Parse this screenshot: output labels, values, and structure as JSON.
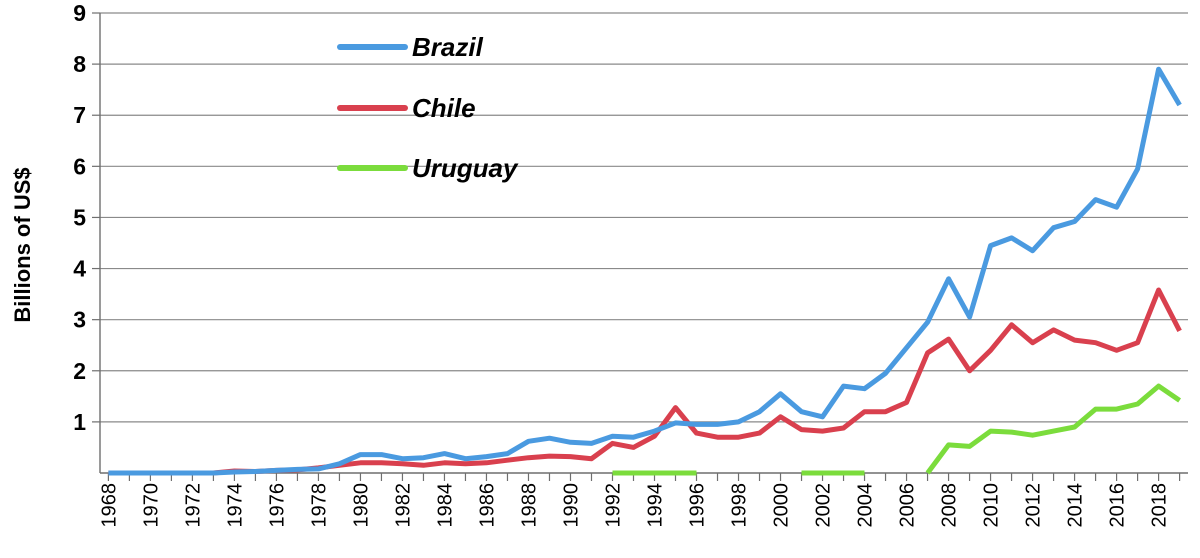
{
  "chart_data": {
    "type": "line",
    "ylabel": "Billions of US$",
    "xlabel": "",
    "ylim": [
      0,
      9
    ],
    "y_ticks": [
      "1",
      "2",
      "3",
      "4",
      "5",
      "6",
      "7",
      "8",
      "9"
    ],
    "x_tick_labels": [
      "1968",
      "1970",
      "1972",
      "1974",
      "1976",
      "1978",
      "1980",
      "1982",
      "1984",
      "1986",
      "1988",
      "1990",
      "1992",
      "1994",
      "1996",
      "1998",
      "2000",
      "2002",
      "2004",
      "2006",
      "2008",
      "2010",
      "2012",
      "2014",
      "2016",
      "2018"
    ],
    "grid": "horizontal",
    "legend_position": "top-left",
    "x": [
      1968,
      1969,
      1970,
      1971,
      1972,
      1973,
      1974,
      1975,
      1976,
      1977,
      1978,
      1979,
      1980,
      1981,
      1982,
      1983,
      1984,
      1985,
      1986,
      1987,
      1988,
      1989,
      1990,
      1991,
      1992,
      1993,
      1994,
      1995,
      1996,
      1997,
      1998,
      1999,
      2000,
      2001,
      2002,
      2003,
      2004,
      2005,
      2006,
      2007,
      2008,
      2009,
      2010,
      2011,
      2012,
      2013,
      2014,
      2015,
      2016,
      2017,
      2018,
      2019
    ],
    "series": [
      {
        "name": "Brazil",
        "color": "#4a9ae0",
        "values": [
          0,
          0,
          0,
          0,
          0,
          0,
          0.02,
          0.03,
          0.05,
          0.07,
          0.08,
          0.18,
          0.36,
          0.36,
          0.28,
          0.3,
          0.38,
          0.28,
          0.32,
          0.38,
          0.62,
          0.68,
          0.6,
          0.58,
          0.72,
          0.7,
          0.82,
          0.98,
          0.95,
          0.95,
          1.0,
          1.2,
          1.55,
          1.2,
          1.1,
          1.7,
          1.65,
          1.95,
          2.45,
          2.95,
          3.8,
          3.05,
          4.45,
          4.6,
          4.35,
          4.8,
          4.92,
          5.35,
          5.2,
          5.95,
          7.9,
          7.2
        ]
      },
      {
        "name": "Chile",
        "color": "#d9404e",
        "values": [
          0,
          0,
          0,
          0,
          0,
          0,
          0.04,
          0.03,
          0.05,
          0.06,
          0.1,
          0.15,
          0.2,
          0.2,
          0.18,
          0.15,
          0.2,
          0.18,
          0.2,
          0.25,
          0.3,
          0.33,
          0.32,
          0.28,
          0.58,
          0.5,
          0.72,
          1.28,
          0.78,
          0.7,
          0.7,
          0.78,
          1.1,
          0.85,
          0.82,
          0.88,
          1.2,
          1.2,
          1.38,
          2.35,
          2.62,
          2.0,
          2.4,
          2.9,
          2.55,
          2.8,
          2.6,
          2.55,
          2.4,
          2.55,
          3.58,
          2.78
        ]
      },
      {
        "name": "Uruguay",
        "color": "#7bdc3c",
        "values": [
          null,
          null,
          null,
          null,
          null,
          null,
          null,
          null,
          null,
          null,
          null,
          null,
          null,
          null,
          null,
          null,
          null,
          null,
          null,
          null,
          null,
          null,
          null,
          null,
          0,
          0,
          0,
          0,
          0,
          null,
          null,
          null,
          null,
          0,
          0,
          0,
          0,
          null,
          null,
          0,
          0.55,
          0.52,
          0.82,
          0.8,
          0.74,
          0.82,
          0.9,
          1.25,
          1.25,
          1.35,
          1.7,
          1.42
        ]
      }
    ]
  }
}
